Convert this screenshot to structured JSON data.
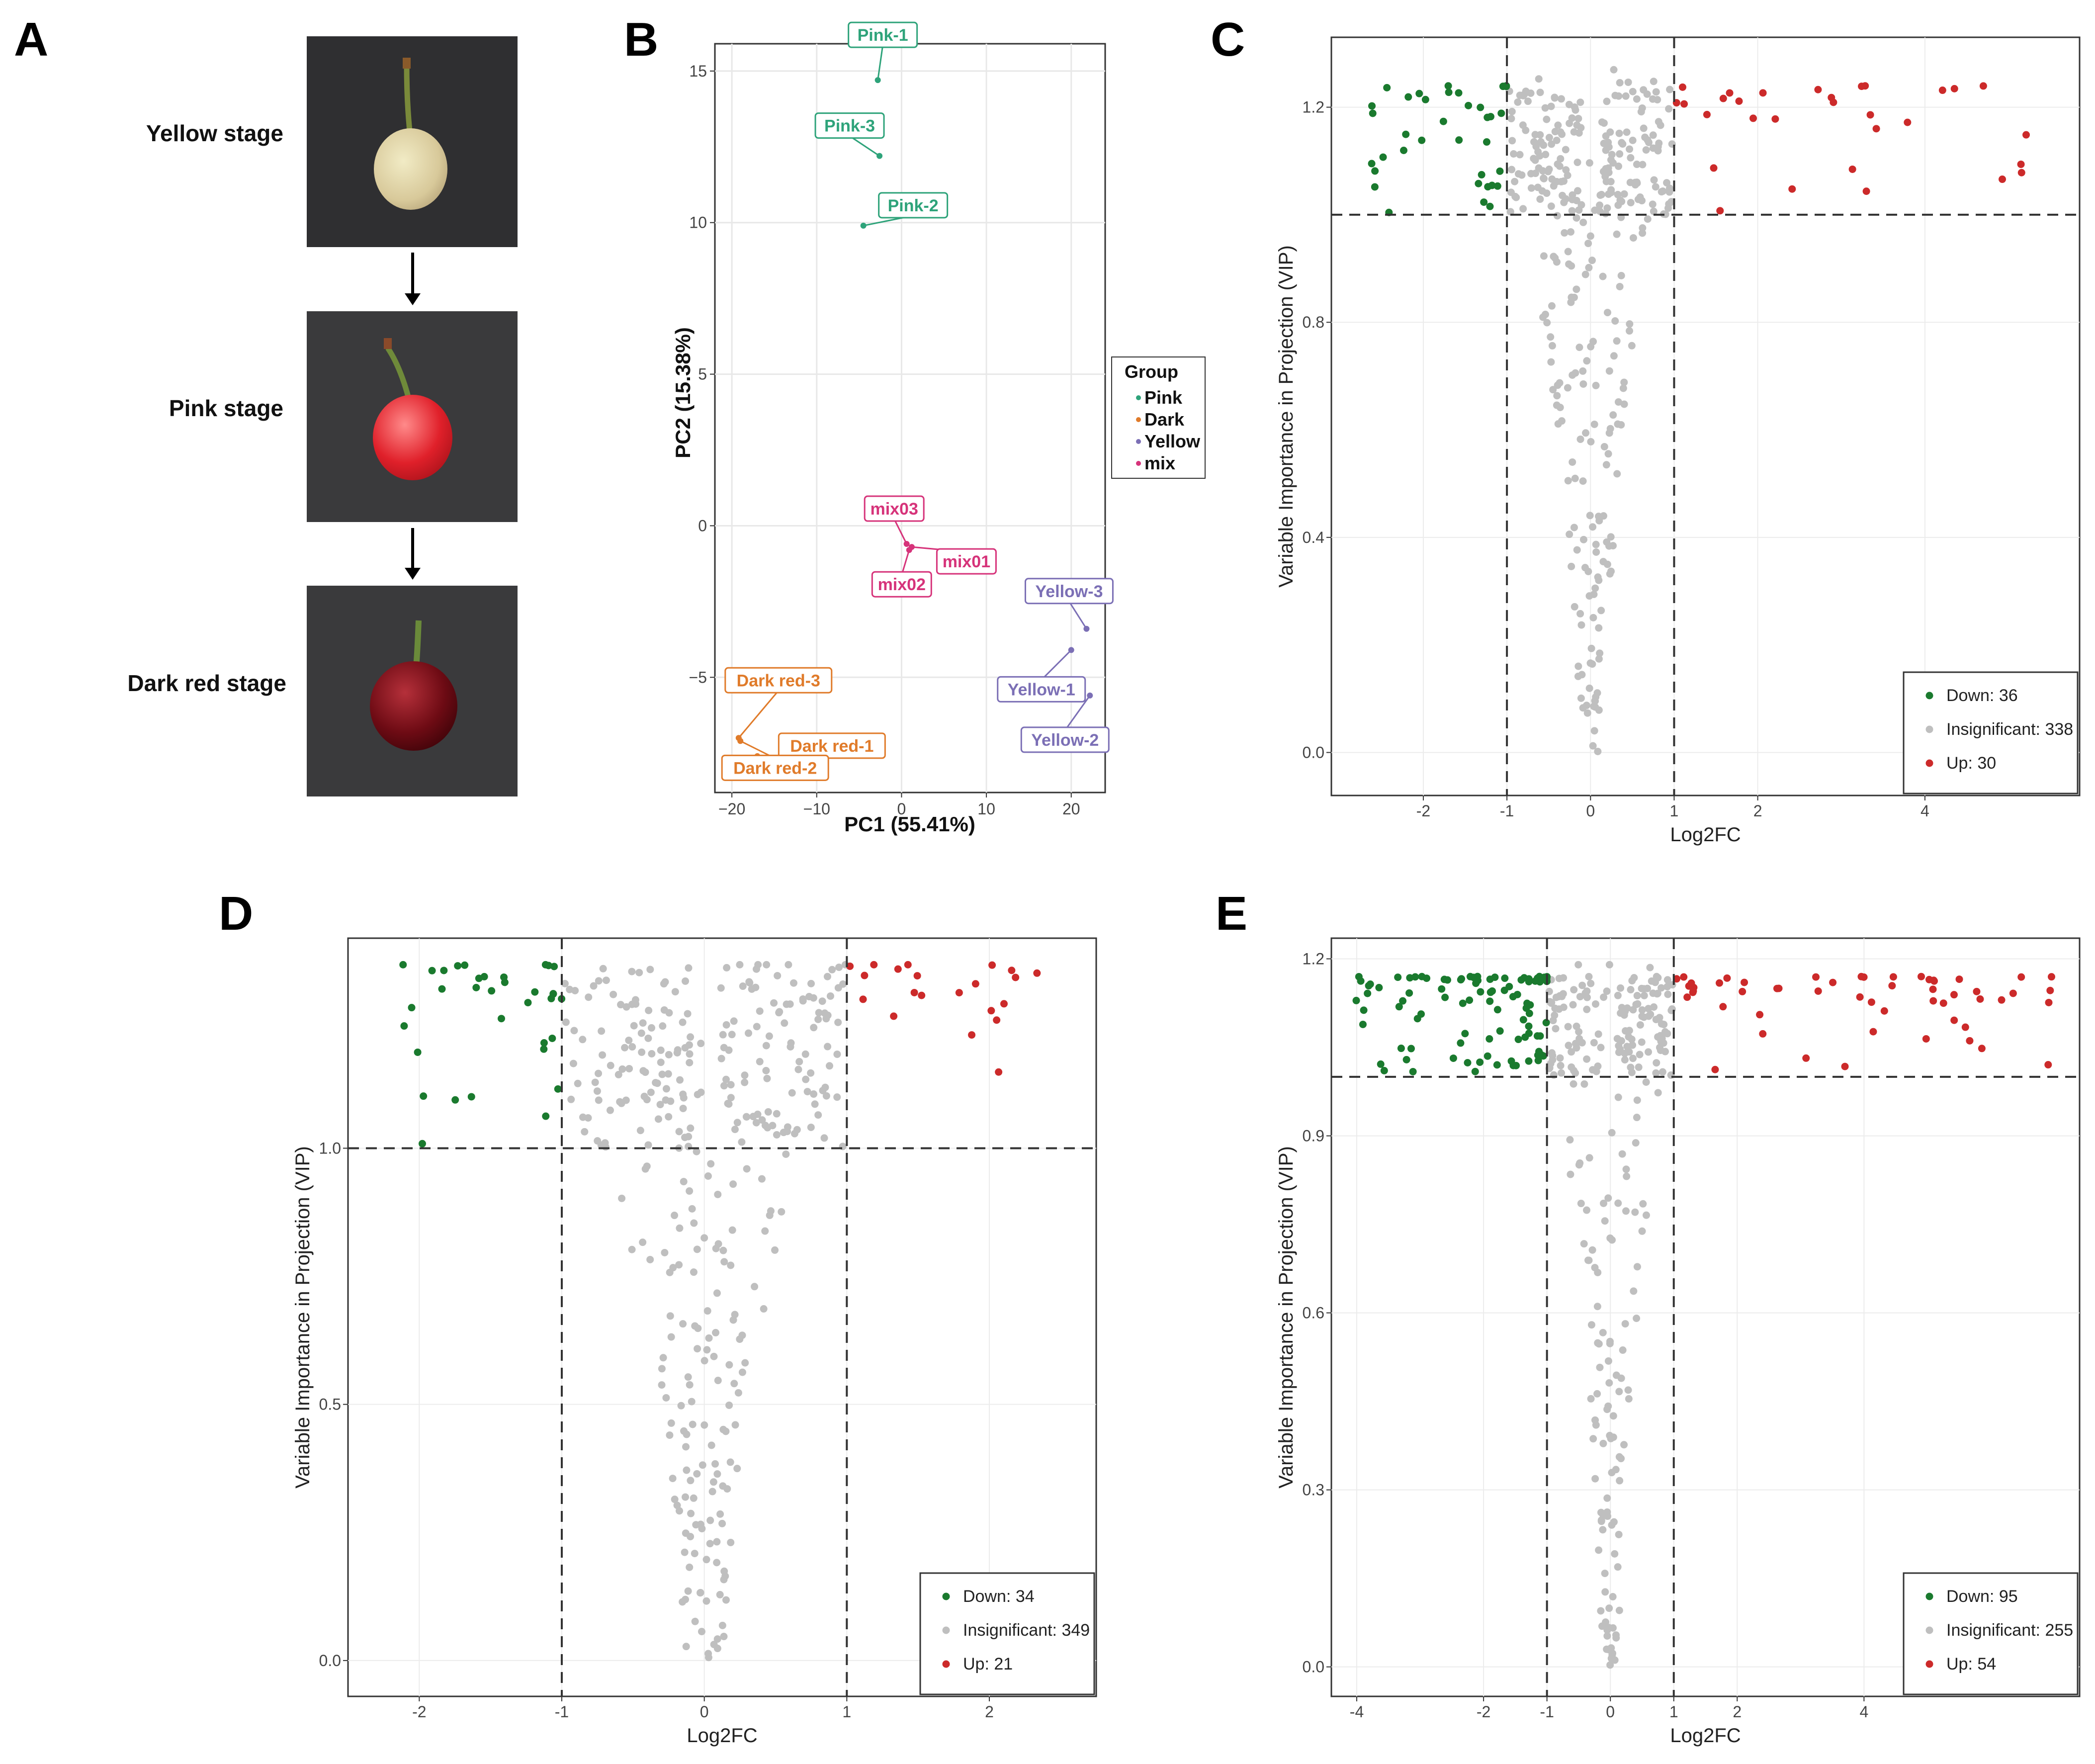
{
  "panel_letters": [
    "A",
    "B",
    "C",
    "D",
    "E"
  ],
  "colors": {
    "down": "#1a7a2e",
    "insig": "#bfbfbf",
    "up": "#cc2a2a",
    "pink": "#2ea37a",
    "dark": "#e07b2a",
    "yellow": "#7b6fb5",
    "mix": "#d6337a"
  },
  "panel_a": {
    "stages": [
      "Yellow stage",
      "Pink stage",
      "Dark red stage"
    ],
    "image_names": [
      "cherry-yellow-photo",
      "cherry-pink-photo",
      "cherry-dark-red-photo"
    ]
  },
  "chart_data": [
    {
      "id": "B",
      "type": "scatter",
      "title": "",
      "xlabel": "PC1 (55.41%)",
      "ylabel": "PC2 (15.38%)",
      "xlim": [
        -22,
        24
      ],
      "ylim": [
        -8.8,
        15.9
      ],
      "xticks": [
        -20,
        -10,
        0,
        10,
        20
      ],
      "yticks": [
        -5,
        0,
        5,
        10,
        15
      ],
      "legend_title": "Group",
      "legend": [
        "Pink",
        "Dark",
        "Yellow",
        "mix"
      ],
      "points": [
        {
          "label": "Pink-1",
          "group": "Pink",
          "x": -2.8,
          "y": 14.7
        },
        {
          "label": "Pink-2",
          "group": "Pink",
          "x": -4.5,
          "y": 9.9
        },
        {
          "label": "Pink-3",
          "group": "Pink",
          "x": -2.6,
          "y": 12.2
        },
        {
          "label": "Dark red-1",
          "group": "Dark",
          "x": -17.0,
          "y": -7.6
        },
        {
          "label": "Dark red-2",
          "group": "Dark",
          "x": -19.0,
          "y": -7.1
        },
        {
          "label": "Dark red-3",
          "group": "Dark",
          "x": -19.2,
          "y": -7.0
        },
        {
          "label": "Yellow-1",
          "group": "Yellow",
          "x": 20.0,
          "y": -4.1
        },
        {
          "label": "Yellow-2",
          "group": "Yellow",
          "x": 22.2,
          "y": -5.6
        },
        {
          "label": "Yellow-3",
          "group": "Yellow",
          "x": 21.8,
          "y": -3.4
        },
        {
          "label": "mix01",
          "group": "mix",
          "x": 1.2,
          "y": -0.7
        },
        {
          "label": "mix02",
          "group": "mix",
          "x": 0.9,
          "y": -0.8
        },
        {
          "label": "mix03",
          "group": "mix",
          "x": 0.6,
          "y": -0.6
        }
      ]
    },
    {
      "id": "C",
      "type": "scatter",
      "xlabel": "Log2FC",
      "ylabel": "Variable Importance in Projection (VIP)",
      "xlim": [
        -3.1,
        5.85
      ],
      "ylim": [
        -0.08,
        1.33
      ],
      "xticks": [
        -2,
        -1,
        0,
        1,
        2,
        4
      ],
      "yticks": [
        0.0,
        0.4,
        0.8,
        1.2
      ],
      "ytick_labels": [
        "0.0",
        "0.4",
        "0.8",
        "1.2"
      ],
      "threshold_x": [
        -1,
        1
      ],
      "threshold_y": 1.0,
      "legend": [
        {
          "name": "Down",
          "count": 36
        },
        {
          "name": "Insignificant",
          "count": 338
        },
        {
          "name": "Up",
          "count": 30
        }
      ]
    },
    {
      "id": "D",
      "type": "scatter",
      "xlabel": "Log2FC",
      "ylabel": "Variable Importance in Projection (VIP)",
      "xlim": [
        -2.5,
        2.75
      ],
      "ylim": [
        -0.07,
        1.41
      ],
      "xticks": [
        -2,
        -1,
        0,
        1,
        2
      ],
      "yticks": [
        0.0,
        0.5,
        1.0
      ],
      "ytick_labels": [
        "0.0",
        "0.5",
        "1.0"
      ],
      "threshold_x": [
        -1,
        1
      ],
      "threshold_y": 1.0,
      "legend": [
        {
          "name": "Down",
          "count": 34
        },
        {
          "name": "Insignificant",
          "count": 349
        },
        {
          "name": "Up",
          "count": 21
        }
      ]
    },
    {
      "id": "E",
      "type": "scatter",
      "xlabel": "Log2FC",
      "ylabel": "Variable Importance in Projection (VIP)",
      "xlim": [
        -4.4,
        7.4
      ],
      "ylim": [
        -0.05,
        1.235
      ],
      "xticks": [
        -4,
        -2,
        -1,
        0,
        1,
        2,
        4
      ],
      "yticks": [
        0.0,
        0.3,
        0.6,
        0.9,
        1.2
      ],
      "ytick_labels": [
        "0.0",
        "0.3",
        "0.6",
        "0.9",
        "1.2"
      ],
      "threshold_x": [
        -1,
        1
      ],
      "threshold_y": 1.0,
      "legend": [
        {
          "name": "Down",
          "count": 95
        },
        {
          "name": "Insignificant",
          "count": 255
        },
        {
          "name": "Up",
          "count": 54
        }
      ]
    }
  ]
}
